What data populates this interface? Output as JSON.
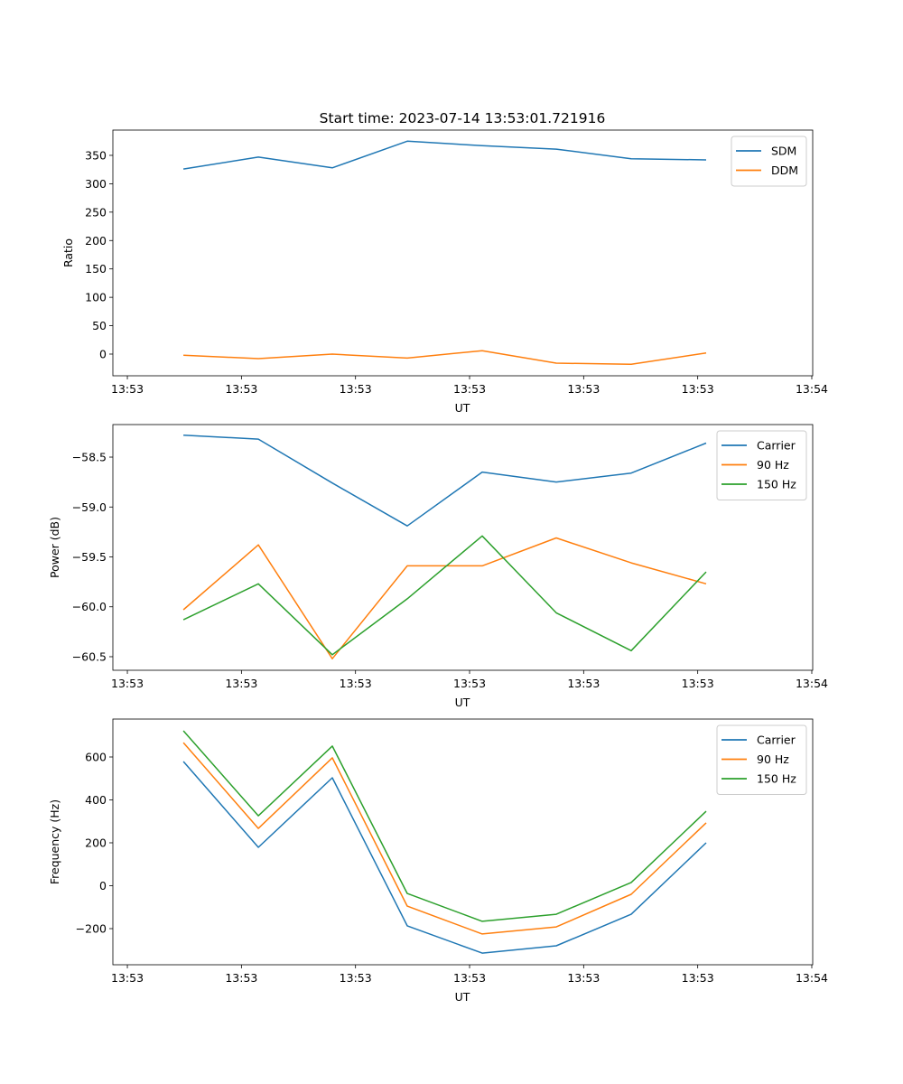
{
  "chart_data": {
    "title": "Start time: 2023-07-14 13:53:01.721916",
    "x_unit_note": "seconds after 13:53:00",
    "x": [
      4.91,
      11.48,
      17.97,
      24.54,
      31.11,
      37.6,
      44.17,
      50.74
    ],
    "xticks": [
      0,
      10,
      20,
      30,
      40,
      50,
      60
    ],
    "xtick_labels": [
      "13:53",
      "13:53",
      "13:53",
      "13:53",
      "13:53",
      "13:53",
      "13:54"
    ],
    "xlim": [
      -1.27,
      60.08
    ],
    "colors": {
      "blue": "#1f77b4",
      "orange": "#ff7f0e",
      "green": "#2ca02c"
    },
    "subplots": [
      {
        "type": "line",
        "xlabel": "UT",
        "ylabel": "Ratio",
        "ylim": [
          -38.2,
          394.5
        ],
        "yticks": [
          0,
          50,
          100,
          150,
          200,
          250,
          300,
          350
        ],
        "ytick_labels": [
          "0",
          "50",
          "100",
          "150",
          "200",
          "250",
          "300",
          "350"
        ],
        "legend": "top-right",
        "series": [
          {
            "name": "SDM",
            "color": "#1f77b4",
            "values": [
              326,
              347,
              328,
              375,
              367,
              361,
              344,
              342
            ]
          },
          {
            "name": "DDM",
            "color": "#ff7f0e",
            "values": [
              -2,
              -8,
              0,
              -7,
              6,
              -16,
              -18,
              2
            ]
          }
        ]
      },
      {
        "type": "line",
        "xlabel": "UT",
        "ylabel": "Power (dB)",
        "ylim": [
          -60.636,
          -58.174
        ],
        "yticks": [
          -58.5,
          -59.0,
          -59.5,
          -60.0,
          -60.5
        ],
        "ytick_labels": [
          "−58.5",
          "−59.0",
          "−59.5",
          "−60.0",
          "−60.5"
        ],
        "legend": "top-right",
        "series": [
          {
            "name": "Carrier",
            "color": "#1f77b4",
            "values": [
              -58.28,
              -58.32,
              -58.76,
              -59.19,
              -58.65,
              -58.75,
              -58.66,
              -58.36
            ]
          },
          {
            "name": "90 Hz",
            "color": "#ff7f0e",
            "values": [
              -60.03,
              -59.38,
              -60.52,
              -59.59,
              -59.59,
              -59.31,
              -59.56,
              -59.77
            ]
          },
          {
            "name": "150 Hz",
            "color": "#2ca02c",
            "values": [
              -60.13,
              -59.77,
              -60.48,
              -59.92,
              -59.29,
              -60.06,
              -60.44,
              -59.65
            ]
          }
        ]
      },
      {
        "type": "line",
        "xlabel": "UT",
        "ylabel": "Frequency (Hz)",
        "ylim": [
          -368.4,
          776.8
        ],
        "yticks": [
          -200,
          0,
          200,
          400,
          600
        ],
        "ytick_labels": [
          "−200",
          "0",
          "200",
          "400",
          "600"
        ],
        "legend": "top-right",
        "series": [
          {
            "name": "Carrier",
            "color": "#1f77b4",
            "values": [
              579,
              179,
              503,
              -187,
              -314,
              -280,
              -133,
              200
            ]
          },
          {
            "name": "90 Hz",
            "color": "#ff7f0e",
            "values": [
              667,
              267,
              596,
              -95,
              -225,
              -192,
              -40,
              293
            ]
          },
          {
            "name": "150 Hz",
            "color": "#2ca02c",
            "values": [
              722,
              326,
              651,
              -36,
              -166,
              -133,
              15,
              347
            ]
          }
        ]
      }
    ]
  }
}
